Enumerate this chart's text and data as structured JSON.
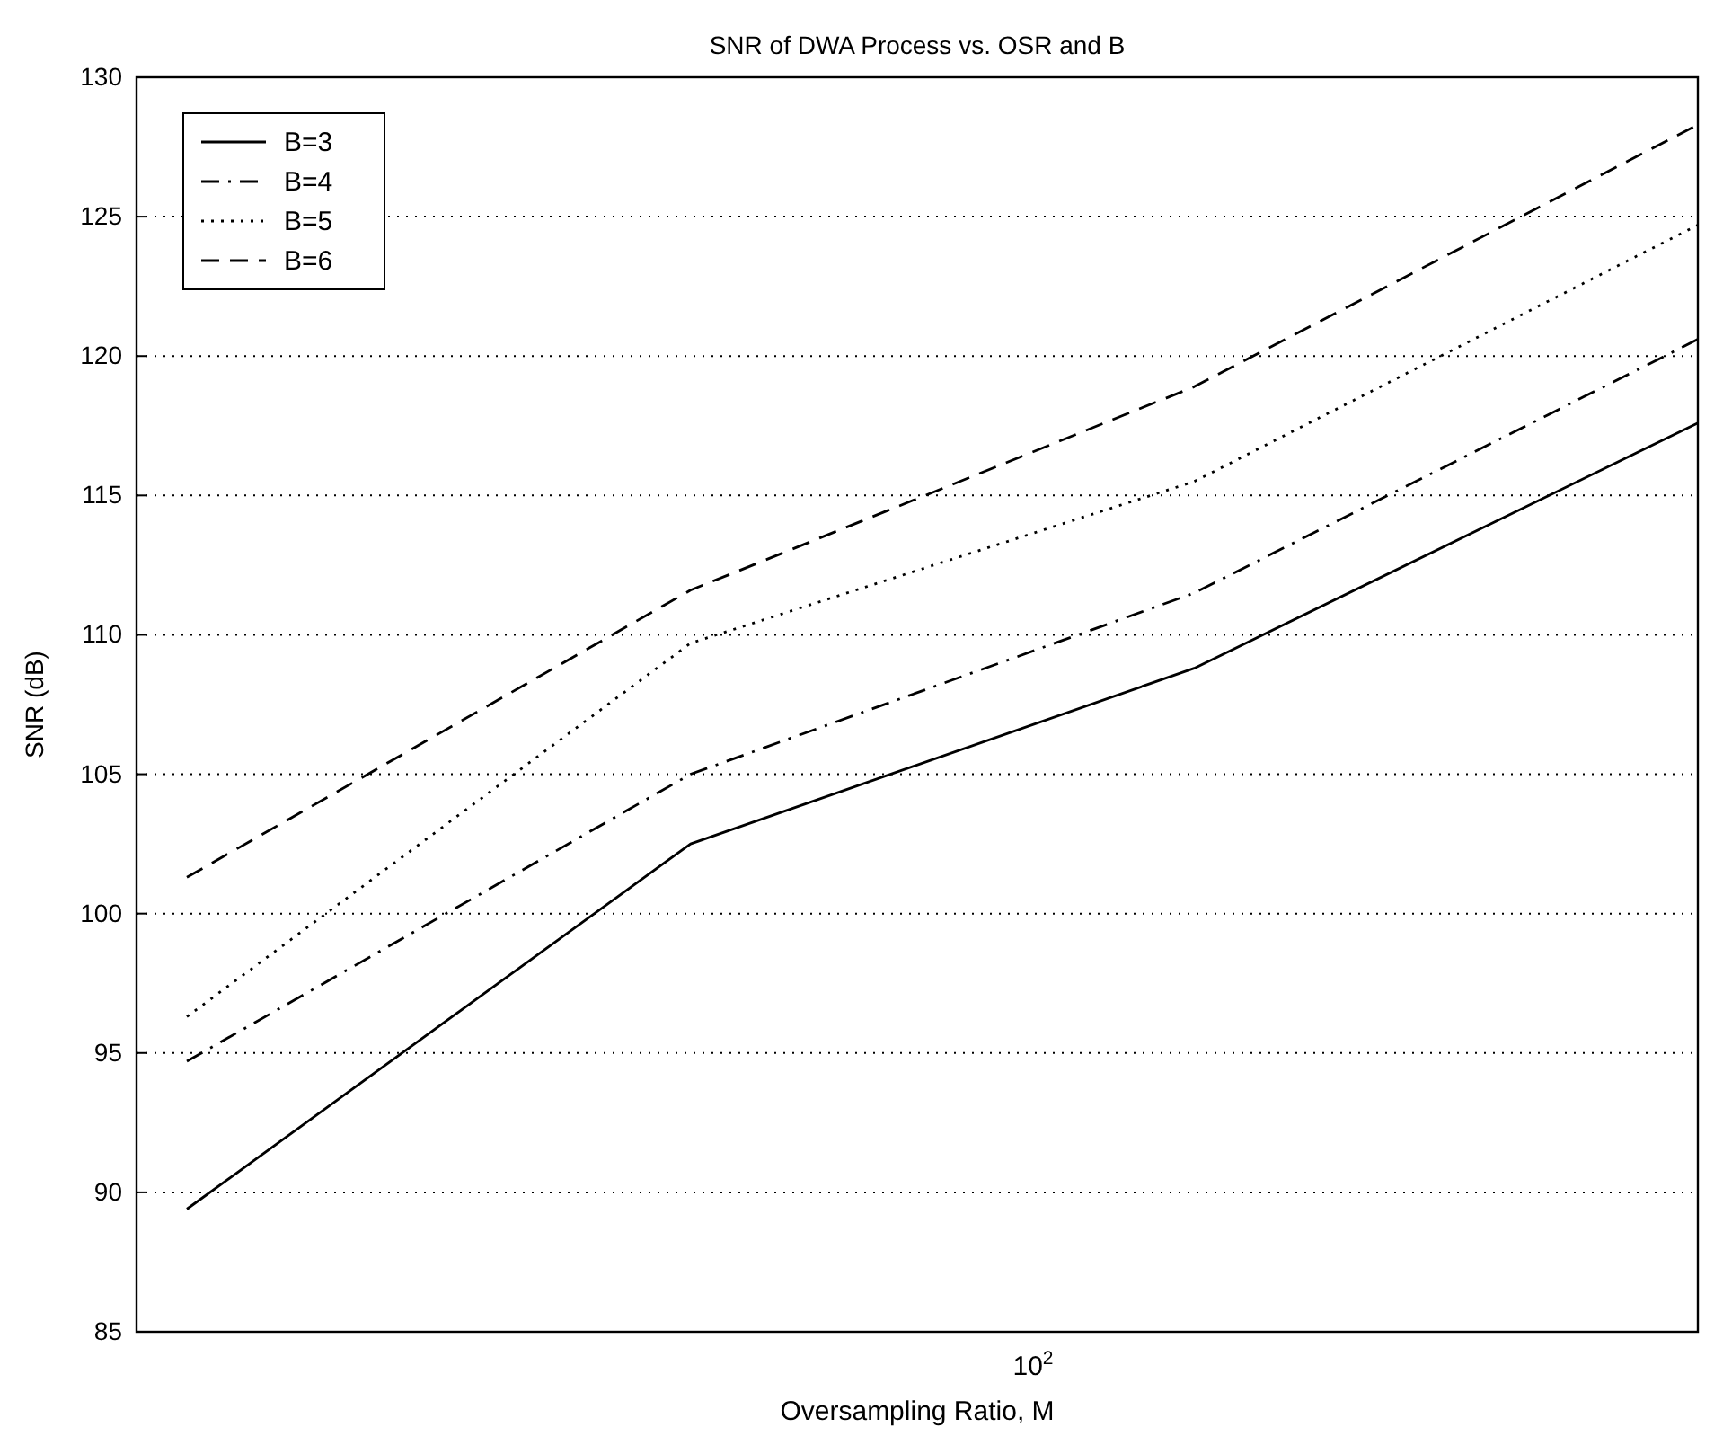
{
  "chart_data": {
    "type": "line",
    "title": "SNR of DWA Process vs. OSR and B",
    "xlabel": "Oversampling Ratio, M",
    "ylabel": "SNR (dB)",
    "categories": [
      null,
      null,
      null,
      null
    ],
    "series": [
      {
        "name": "B=3",
        "color": "#000000",
        "line_style": "solid",
        "values": [
          89.4,
          102.5,
          108.8,
          117.6
        ]
      },
      {
        "name": "B=4",
        "color": "#000000",
        "line_style": "dashdot",
        "values": [
          94.7,
          105.0,
          111.5,
          120.6
        ]
      },
      {
        "name": "B=5",
        "color": "#000000",
        "line_style": "dotted",
        "values": [
          96.3,
          109.7,
          115.5,
          124.7
        ]
      },
      {
        "name": "B=6",
        "color": "#000000",
        "line_style": "dashed",
        "values": [
          101.3,
          111.6,
          118.9,
          128.3
        ]
      }
    ],
    "annotations": [
      "10$^{2}$"
    ],
    "ylim": [
      85,
      130
    ],
    "yticks": [
      85,
      90,
      95,
      100,
      105,
      110,
      115,
      120,
      125,
      130
    ],
    "grid": "y",
    "legend": "top left"
  }
}
